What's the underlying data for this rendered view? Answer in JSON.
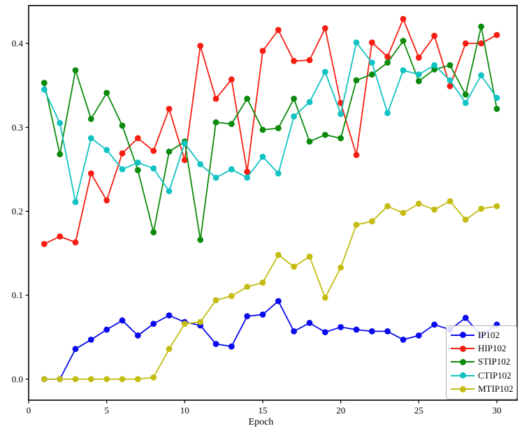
{
  "chart_data": {
    "type": "line",
    "marker": "circle",
    "grid": false,
    "xlabel": "Epoch",
    "ylabel": "",
    "title": "",
    "x": [
      1,
      2,
      3,
      4,
      5,
      6,
      7,
      8,
      9,
      10,
      11,
      12,
      13,
      14,
      15,
      16,
      17,
      18,
      19,
      20,
      21,
      22,
      23,
      24,
      25,
      26,
      27,
      28,
      29,
      30
    ],
    "x_ticks": [
      0,
      5,
      10,
      15,
      20,
      25,
      30
    ],
    "y_ticks": [
      0.0,
      0.1,
      0.2,
      0.3,
      0.4
    ],
    "y_tick_labels": [
      "0.0",
      "0.1",
      "0.2",
      "0.3",
      "0.4"
    ],
    "xlim": [
      0,
      31.3
    ],
    "ylim": [
      -0.025,
      0.445
    ],
    "legend_position": "lower right",
    "series": [
      {
        "name": "IP102",
        "color": "#0a0aee",
        "values": [
          0.0,
          0.0,
          0.036,
          0.047,
          0.059,
          0.07,
          0.052,
          0.066,
          0.076,
          0.068,
          0.064,
          0.042,
          0.039,
          0.075,
          0.077,
          0.093,
          0.057,
          0.067,
          0.056,
          0.062,
          0.059,
          0.057,
          0.057,
          0.047,
          0.052,
          0.065,
          0.059,
          0.073,
          0.052,
          0.065
        ]
      },
      {
        "name": "HIP102",
        "color": "#f71d12",
        "values": [
          0.161,
          0.17,
          0.163,
          0.245,
          0.213,
          0.269,
          0.287,
          0.272,
          0.322,
          0.261,
          0.397,
          0.334,
          0.357,
          0.247,
          0.391,
          0.416,
          0.379,
          0.38,
          0.418,
          0.329,
          0.267,
          0.401,
          0.384,
          0.429,
          0.383,
          0.409,
          0.349,
          0.4,
          0.4,
          0.41
        ]
      },
      {
        "name": "STIP102",
        "color": "#0b8a0b",
        "values": [
          0.353,
          0.268,
          0.368,
          0.31,
          0.341,
          0.302,
          0.249,
          0.175,
          0.271,
          0.283,
          0.166,
          0.306,
          0.304,
          0.334,
          0.297,
          0.299,
          0.334,
          0.283,
          0.291,
          0.287,
          0.356,
          0.363,
          0.377,
          0.403,
          0.355,
          0.369,
          0.374,
          0.339,
          0.42,
          0.322
        ]
      },
      {
        "name": "CTIP102",
        "color": "#12c3c3",
        "values": [
          0.345,
          0.305,
          0.211,
          0.287,
          0.273,
          0.25,
          0.258,
          0.251,
          0.224,
          0.281,
          0.256,
          0.24,
          0.25,
          0.24,
          0.265,
          0.245,
          0.313,
          0.33,
          0.366,
          0.316,
          0.401,
          0.377,
          0.317,
          0.368,
          0.363,
          0.374,
          0.356,
          0.329,
          0.362,
          0.335
        ]
      },
      {
        "name": "MTIP102",
        "color": "#c4bc12",
        "values": [
          0.0,
          0.0,
          0.0,
          0.0,
          0.0,
          0.0,
          0.0,
          0.002,
          0.036,
          0.066,
          0.068,
          0.094,
          0.099,
          0.11,
          0.115,
          0.148,
          0.134,
          0.146,
          0.097,
          0.133,
          0.184,
          0.188,
          0.206,
          0.198,
          0.209,
          0.202,
          0.212,
          0.19,
          0.203,
          0.206
        ]
      }
    ]
  }
}
